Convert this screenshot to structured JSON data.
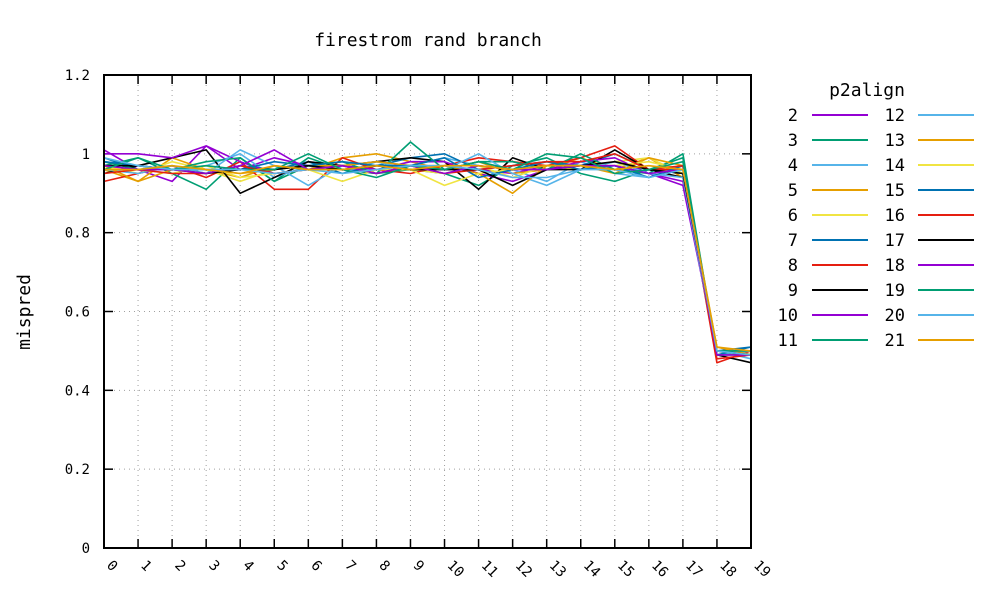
{
  "chart_data": {
    "type": "line",
    "title": "firestrom rand branch",
    "xlabel": "",
    "ylabel": "mispred",
    "x": [
      0,
      1,
      2,
      3,
      4,
      5,
      6,
      7,
      8,
      9,
      10,
      11,
      12,
      13,
      14,
      15,
      16,
      17,
      18,
      19
    ],
    "x_tick_labels": [
      "0",
      "1",
      "2",
      "3",
      "4",
      "5",
      "6",
      "7",
      "8",
      "9",
      "10",
      "11",
      "12",
      "13",
      "14",
      "15",
      "16",
      "17",
      "18",
      "19"
    ],
    "xlim": [
      0,
      19
    ],
    "ylim": [
      0,
      1.2
    ],
    "y_ticks": [
      0,
      0.2,
      0.4,
      0.6,
      0.8,
      1,
      1.2
    ],
    "y_tick_labels": [
      "0",
      "0.2",
      "0.4",
      "0.6",
      "0.8",
      "1",
      "1.2"
    ],
    "grid": true,
    "legend_title": "p2align",
    "legend_position": "right",
    "series": [
      {
        "name": "2",
        "color": "#9400d3",
        "values": [
          1.01,
          0.96,
          0.93,
          1.02,
          0.96,
          0.99,
          0.97,
          0.96,
          0.95,
          0.97,
          0.96,
          0.96,
          0.95,
          0.97,
          0.97,
          0.97,
          0.95,
          0.93,
          0.5,
          0.49
        ]
      },
      {
        "name": "3",
        "color": "#009e73",
        "values": [
          0.97,
          0.99,
          0.95,
          0.91,
          0.99,
          0.93,
          0.99,
          0.96,
          0.95,
          0.96,
          0.95,
          0.92,
          0.97,
          0.99,
          0.95,
          0.93,
          0.96,
          0.99,
          0.49,
          0.5
        ]
      },
      {
        "name": "4",
        "color": "#56b4e9",
        "values": [
          0.98,
          0.97,
          0.96,
          0.97,
          1.0,
          0.94,
          0.97,
          0.95,
          0.98,
          0.97,
          0.99,
          0.97,
          0.96,
          0.93,
          0.98,
          0.95,
          0.94,
          0.96,
          0.5,
          0.48
        ]
      },
      {
        "name": "5",
        "color": "#e69f00",
        "values": [
          0.96,
          0.93,
          0.99,
          0.96,
          0.94,
          0.97,
          0.96,
          0.99,
          1.0,
          0.98,
          0.96,
          0.98,
          0.95,
          0.96,
          0.99,
          0.96,
          0.99,
          0.94,
          0.51,
          0.49
        ]
      },
      {
        "name": "6",
        "color": "#f0e442",
        "values": [
          0.97,
          0.95,
          0.98,
          0.96,
          0.93,
          0.96,
          0.98,
          0.96,
          0.97,
          0.96,
          0.95,
          0.97,
          0.94,
          0.97,
          0.96,
          0.98,
          0.99,
          0.95,
          0.5,
          0.5
        ]
      },
      {
        "name": "7",
        "color": "#0072b2",
        "values": [
          0.99,
          0.96,
          0.97,
          0.95,
          0.97,
          0.96,
          0.98,
          0.95,
          0.97,
          0.99,
          1.0,
          0.96,
          0.97,
          0.98,
          0.97,
          1.0,
          0.96,
          0.95,
          0.5,
          0.51
        ]
      },
      {
        "name": "8",
        "color": "#e51e10",
        "values": [
          0.93,
          0.95,
          0.97,
          0.94,
          0.98,
          0.91,
          0.91,
          0.99,
          0.96,
          0.95,
          0.97,
          0.99,
          0.98,
          0.97,
          0.99,
          1.02,
          0.96,
          0.96,
          0.47,
          0.5
        ]
      },
      {
        "name": "9",
        "color": "#000000",
        "values": [
          0.95,
          0.97,
          0.99,
          1.01,
          0.9,
          0.94,
          0.98,
          0.97,
          0.98,
          0.99,
          0.98,
          0.91,
          0.99,
          0.96,
          0.96,
          1.01,
          0.96,
          0.94,
          0.49,
          0.47
        ]
      },
      {
        "name": "10",
        "color": "#9400d3",
        "values": [
          1.0,
          1.0,
          0.99,
          1.02,
          0.98,
          0.95,
          0.96,
          0.97,
          0.96,
          0.98,
          0.98,
          0.95,
          0.93,
          0.96,
          0.98,
          0.99,
          0.95,
          0.92,
          0.5,
          0.49
        ]
      },
      {
        "name": "11",
        "color": "#009e73",
        "values": [
          0.98,
          0.96,
          0.96,
          0.98,
          0.99,
          0.93,
          0.97,
          0.98,
          0.95,
          1.03,
          0.96,
          0.98,
          0.98,
          0.96,
          1.0,
          0.96,
          0.95,
          1.0,
          0.49,
          0.49
        ]
      },
      {
        "name": "12",
        "color": "#56b4e9",
        "values": [
          0.96,
          0.95,
          0.97,
          0.95,
          1.01,
          0.97,
          0.92,
          0.97,
          0.98,
          0.96,
          0.96,
          1.0,
          0.95,
          0.92,
          0.96,
          0.98,
          0.95,
          0.94,
          0.49,
          0.5
        ]
      },
      {
        "name": "13",
        "color": "#e69f00",
        "values": [
          0.97,
          0.93,
          0.96,
          0.96,
          0.95,
          0.96,
          0.97,
          0.97,
          0.98,
          0.97,
          0.97,
          0.95,
          0.9,
          0.97,
          0.97,
          0.95,
          0.99,
          0.97,
          0.51,
          0.49
        ]
      },
      {
        "name": "14",
        "color": "#f0e442",
        "values": [
          0.96,
          0.96,
          0.95,
          0.97,
          0.94,
          0.95,
          0.96,
          0.93,
          0.96,
          0.96,
          0.92,
          0.95,
          0.96,
          0.97,
          0.97,
          0.97,
          0.98,
          0.96,
          0.5,
          0.49
        ]
      },
      {
        "name": "15",
        "color": "#0072b2",
        "values": [
          0.98,
          0.97,
          0.96,
          0.96,
          0.96,
          0.98,
          0.97,
          0.98,
          0.97,
          0.97,
          0.99,
          0.94,
          0.96,
          0.98,
          0.96,
          0.97,
          0.94,
          0.97,
          0.49,
          0.51
        ]
      },
      {
        "name": "16",
        "color": "#e51e10",
        "values": [
          0.95,
          0.96,
          0.95,
          0.95,
          0.97,
          0.95,
          0.96,
          0.97,
          0.95,
          0.97,
          0.95,
          0.96,
          0.97,
          0.98,
          0.98,
          1.0,
          0.96,
          0.97,
          0.48,
          0.49
        ]
      },
      {
        "name": "17",
        "color": "#000000",
        "values": [
          0.97,
          0.97,
          0.96,
          0.95,
          0.96,
          0.96,
          0.97,
          0.96,
          0.97,
          0.96,
          0.96,
          0.96,
          0.92,
          0.96,
          0.97,
          0.98,
          0.96,
          0.95,
          0.5,
          0.49
        ]
      },
      {
        "name": "18",
        "color": "#9400d3",
        "values": [
          0.97,
          0.96,
          0.96,
          0.95,
          0.97,
          1.01,
          0.96,
          0.97,
          0.95,
          0.97,
          0.95,
          0.97,
          0.96,
          0.96,
          0.97,
          0.97,
          0.95,
          0.96,
          0.49,
          0.49
        ]
      },
      {
        "name": "19",
        "color": "#009e73",
        "values": [
          0.96,
          0.99,
          0.96,
          0.97,
          0.96,
          0.96,
          1.0,
          0.96,
          0.94,
          0.97,
          0.96,
          0.98,
          0.96,
          1.0,
          0.99,
          0.95,
          0.96,
          0.98,
          0.5,
          0.5
        ]
      },
      {
        "name": "20",
        "color": "#56b4e9",
        "values": [
          0.99,
          0.97,
          0.96,
          0.96,
          0.96,
          0.95,
          0.96,
          0.95,
          0.96,
          0.97,
          0.97,
          0.96,
          0.94,
          0.94,
          0.96,
          0.96,
          0.94,
          0.96,
          0.5,
          0.49
        ]
      },
      {
        "name": "21",
        "color": "#e69f00",
        "values": [
          0.96,
          0.96,
          0.97,
          0.96,
          0.95,
          0.97,
          0.96,
          0.96,
          0.97,
          0.96,
          0.97,
          0.97,
          0.96,
          0.97,
          0.97,
          0.96,
          0.97,
          0.96,
          0.51,
          0.5
        ]
      }
    ]
  }
}
